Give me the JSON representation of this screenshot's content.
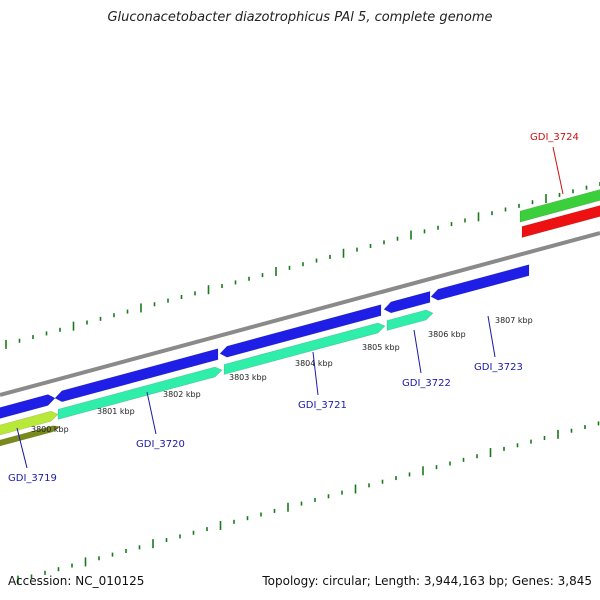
{
  "title": "Gluconacetobacter diazotrophicus PAl 5, complete genome",
  "footer": {
    "accession": "Accession: NC_010125",
    "topology": "Topology: circular; Length: 3,944,163 bp; Genes: 3,845"
  },
  "colors": {
    "backbone": "#8a8a8a",
    "forward_cds": "#1e1ee6",
    "reverse_cds": "#2eeeaa",
    "rna_green": "#3ccf3c",
    "rna_red": "#ee1111",
    "olive": "#7a8a1a",
    "lime": "#b8e838",
    "tick": "#1a7a1a",
    "label_blue": "#1a1aaa",
    "label_red": "#cc1111"
  },
  "ticks": [
    {
      "label": "3800 kbp"
    },
    {
      "label": "3801 kbp"
    },
    {
      "label": "3802 kbp"
    },
    {
      "label": "3803 kbp"
    },
    {
      "label": "3804 kbp"
    },
    {
      "label": "3805 kbp"
    },
    {
      "label": "3806 kbp"
    },
    {
      "label": "3807 kbp"
    }
  ],
  "genes": [
    {
      "name": "GDI_3719",
      "color": "label_blue"
    },
    {
      "name": "GDI_3720",
      "color": "label_blue"
    },
    {
      "name": "GDI_3721",
      "color": "label_blue"
    },
    {
      "name": "GDI_3722",
      "color": "label_blue"
    },
    {
      "name": "GDI_3723",
      "color": "label_blue"
    },
    {
      "name": "GDI_3724",
      "color": "label_red"
    }
  ]
}
